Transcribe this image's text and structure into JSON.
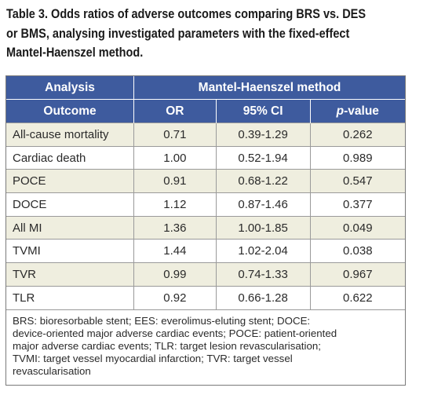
{
  "caption": {
    "line1": "Table 3. Odds ratios of adverse outcomes comparing BRS vs. DES",
    "line2": "or BMS, analysing investigated parameters with the fixed-effect",
    "line3": "Mantel-Haenszel method."
  },
  "header": {
    "analysis": "Analysis",
    "method": "Mantel-Haenszel method",
    "outcome": "Outcome",
    "or": "OR",
    "ci": "95% CI",
    "p_italic": "p",
    "p_rest": "-value"
  },
  "rows": [
    {
      "outcome": "All-cause mortality",
      "or": "0.71",
      "ci": "0.39-1.29",
      "p": "0.262"
    },
    {
      "outcome": "Cardiac death",
      "or": "1.00",
      "ci": "0.52-1.94",
      "p": "0.989"
    },
    {
      "outcome": "POCE",
      "or": "0.91",
      "ci": "0.68-1.22",
      "p": "0.547"
    },
    {
      "outcome": "DOCE",
      "or": "1.12",
      "ci": "0.87-1.46",
      "p": "0.377"
    },
    {
      "outcome": "All MI",
      "or": "1.36",
      "ci": "1.00-1.85",
      "p": "0.049"
    },
    {
      "outcome": "TVMI",
      "or": "1.44",
      "ci": "1.02-2.04",
      "p": "0.038"
    },
    {
      "outcome": "TVR",
      "or": "0.99",
      "ci": "0.74-1.33",
      "p": "0.967"
    },
    {
      "outcome": "TLR",
      "or": "0.92",
      "ci": "0.66-1.28",
      "p": "0.622"
    }
  ],
  "footnote": {
    "line1": "BRS: bioresorbable stent; EES: everolimus-eluting stent; DOCE:",
    "line2": "device-oriented major adverse cardiac events; POCE: patient-oriented",
    "line3": "major adverse cardiac events; TLR: target lesion revascularisation;",
    "line4": "TVMI: target vessel myocardial infarction; TVR: target vessel",
    "line5": "revascularisation"
  },
  "colors": {
    "header_bg": "#3e5b9e",
    "shade_row": "#efeedf",
    "text": "#2a2a2a"
  }
}
